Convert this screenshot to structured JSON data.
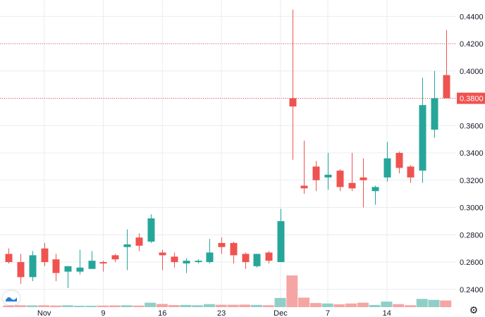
{
  "chart_data": {
    "type": "candlestick",
    "y_axis": {
      "ticks": [
        "0.4400",
        "0.4200",
        "0.4000",
        "0.3800",
        "0.3600",
        "0.3400",
        "0.3200",
        "0.3000",
        "0.2800",
        "0.2600",
        "0.2400"
      ],
      "range": [
        0.227,
        0.452
      ],
      "position": "right",
      "grid": true
    },
    "x_axis": {
      "labels": [
        {
          "text": "Nov",
          "index": 3
        },
        {
          "text": "9",
          "index": 8
        },
        {
          "text": "16",
          "index": 13
        },
        {
          "text": "23",
          "index": 18
        },
        {
          "text": "Dec",
          "index": 23
        },
        {
          "text": "7",
          "index": 27
        },
        {
          "text": "14",
          "index": 32
        }
      ]
    },
    "current_price": "0.3800",
    "current_price_value": 0.38,
    "reference_lines": [
      0.42,
      0.38
    ],
    "colors": {
      "up": "#26a69a",
      "down": "#ef5350",
      "up_volume": "#8fcfc8",
      "down_volume": "#f5a5a3",
      "grid": "#e9ecf1",
      "reference_line": "#ef5350",
      "text": "#131722"
    },
    "candles": [
      {
        "o": 0.266,
        "h": 0.27,
        "l": 0.259,
        "c": 0.26,
        "v": 1.0
      },
      {
        "o": 0.26,
        "h": 0.266,
        "l": 0.244,
        "c": 0.249,
        "v": 1.2
      },
      {
        "o": 0.249,
        "h": 0.268,
        "l": 0.246,
        "c": 0.265,
        "v": 1.1
      },
      {
        "o": 0.27,
        "h": 0.274,
        "l": 0.257,
        "c": 0.26,
        "v": 1.2
      },
      {
        "o": 0.262,
        "h": 0.266,
        "l": 0.246,
        "c": 0.252,
        "v": 1.0
      },
      {
        "o": 0.253,
        "h": 0.257,
        "l": 0.241,
        "c": 0.257,
        "v": 1.2
      },
      {
        "o": 0.253,
        "h": 0.269,
        "l": 0.251,
        "c": 0.256,
        "v": 0.9
      },
      {
        "o": 0.255,
        "h": 0.268,
        "l": 0.255,
        "c": 0.261,
        "v": 0.9
      },
      {
        "o": 0.26,
        "h": 0.261,
        "l": 0.253,
        "c": 0.259,
        "v": 1.0
      },
      {
        "o": 0.265,
        "h": 0.266,
        "l": 0.26,
        "c": 0.262,
        "v": 1.1
      },
      {
        "o": 0.271,
        "h": 0.284,
        "l": 0.254,
        "c": 0.273,
        "v": 1.2
      },
      {
        "o": 0.278,
        "h": 0.281,
        "l": 0.268,
        "c": 0.272,
        "v": 1.0
      },
      {
        "o": 0.275,
        "h": 0.295,
        "l": 0.274,
        "c": 0.292,
        "v": 2.8
      },
      {
        "o": 0.267,
        "h": 0.269,
        "l": 0.254,
        "c": 0.265,
        "v": 2.0
      },
      {
        "o": 0.264,
        "h": 0.267,
        "l": 0.256,
        "c": 0.26,
        "v": 1.3
      },
      {
        "o": 0.259,
        "h": 0.263,
        "l": 0.252,
        "c": 0.261,
        "v": 1.4
      },
      {
        "o": 0.26,
        "h": 0.262,
        "l": 0.259,
        "c": 0.261,
        "v": 1.2
      },
      {
        "o": 0.26,
        "h": 0.277,
        "l": 0.259,
        "c": 0.267,
        "v": 1.9
      },
      {
        "o": 0.274,
        "h": 0.278,
        "l": 0.266,
        "c": 0.271,
        "v": 1.5
      },
      {
        "o": 0.274,
        "h": 0.275,
        "l": 0.259,
        "c": 0.265,
        "v": 1.5
      },
      {
        "o": 0.266,
        "h": 0.267,
        "l": 0.255,
        "c": 0.26,
        "v": 1.6
      },
      {
        "o": 0.257,
        "h": 0.266,
        "l": 0.256,
        "c": 0.266,
        "v": 1.4
      },
      {
        "o": 0.267,
        "h": 0.268,
        "l": 0.259,
        "c": 0.261,
        "v": 1.2
      },
      {
        "o": 0.26,
        "h": 0.299,
        "l": 0.26,
        "c": 0.29,
        "v": 5.8
      },
      {
        "o": 0.38,
        "h": 0.445,
        "l": 0.335,
        "c": 0.374,
        "v": 20.0
      },
      {
        "o": 0.316,
        "h": 0.349,
        "l": 0.31,
        "c": 0.314,
        "v": 6.0
      },
      {
        "o": 0.33,
        "h": 0.334,
        "l": 0.312,
        "c": 0.32,
        "v": 2.6
      },
      {
        "o": 0.322,
        "h": 0.34,
        "l": 0.313,
        "c": 0.324,
        "v": 2.3
      },
      {
        "o": 0.327,
        "h": 0.328,
        "l": 0.312,
        "c": 0.315,
        "v": 1.8
      },
      {
        "o": 0.318,
        "h": 0.34,
        "l": 0.312,
        "c": 0.314,
        "v": 2.3
      },
      {
        "o": 0.322,
        "h": 0.336,
        "l": 0.3,
        "c": 0.32,
        "v": 2.8
      },
      {
        "o": 0.312,
        "h": 0.316,
        "l": 0.302,
        "c": 0.315,
        "v": 1.4
      },
      {
        "o": 0.322,
        "h": 0.348,
        "l": 0.319,
        "c": 0.336,
        "v": 3.5
      },
      {
        "o": 0.34,
        "h": 0.341,
        "l": 0.325,
        "c": 0.329,
        "v": 1.9
      },
      {
        "o": 0.33,
        "h": 0.331,
        "l": 0.318,
        "c": 0.322,
        "v": 1.2
      },
      {
        "o": 0.327,
        "h": 0.395,
        "l": 0.318,
        "c": 0.375,
        "v": 5.2
      },
      {
        "o": 0.357,
        "h": 0.4,
        "l": 0.351,
        "c": 0.38,
        "v": 4.6
      },
      {
        "o": 0.397,
        "h": 0.43,
        "l": 0.38,
        "c": 0.38,
        "v": 4.2
      }
    ]
  }
}
